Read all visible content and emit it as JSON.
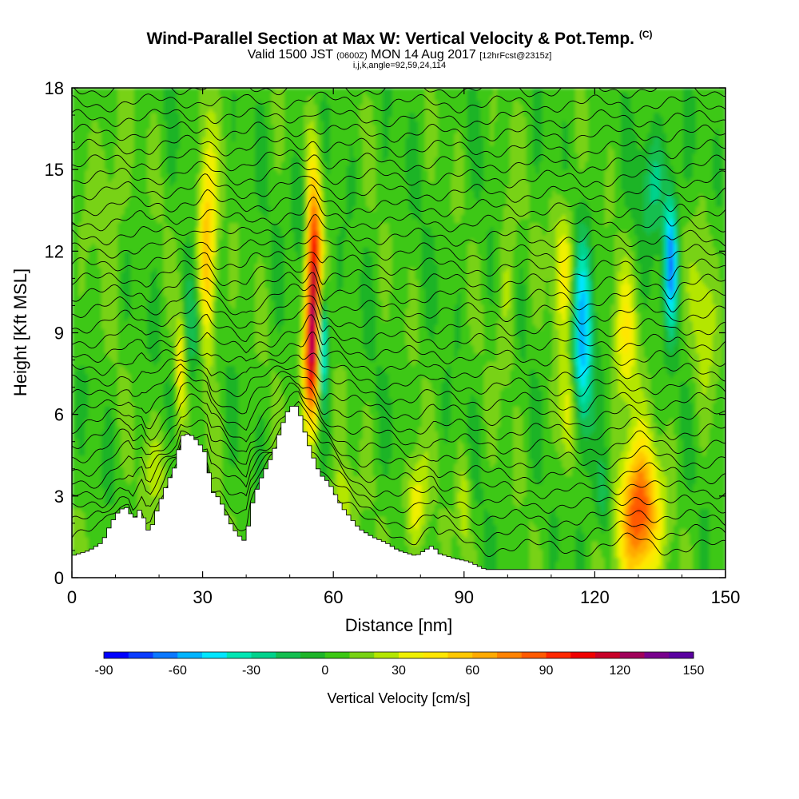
{
  "title": {
    "main": "Wind-Parallel Section at Max W: Vertical Velocity & Pot.Temp.",
    "copyright": "(C)",
    "valid_prefix": "Valid 1500 JST",
    "utc": "(0600Z)",
    "valid_date": "MON 14 Aug 2017",
    "forecast": "[12hrFcst@2315z]",
    "indices": "i,j,k,angle=92,59,24,114"
  },
  "chart_data": {
    "type": "heatmap",
    "xlabel": "Distance [nm]",
    "ylabel": "Height [Kft MSL]",
    "xlim": [
      0,
      150
    ],
    "ylim": [
      0,
      18
    ],
    "xticks": [
      0,
      30,
      60,
      90,
      120,
      150
    ],
    "yticks": [
      0,
      3,
      6,
      9,
      12,
      15,
      18
    ],
    "colorbar": {
      "label": "Vertical Velocity [cm/s]",
      "ticks": [
        -90,
        -60,
        -30,
        0,
        30,
        60,
        90,
        120,
        150
      ],
      "levels": [
        -90,
        -80,
        -70,
        -60,
        -50,
        -40,
        -30,
        -20,
        -10,
        0,
        10,
        20,
        30,
        40,
        50,
        60,
        70,
        80,
        90,
        100,
        110,
        120,
        130,
        140,
        150
      ],
      "colors": [
        "#0000ff",
        "#0a3cff",
        "#0a78ff",
        "#00b4ff",
        "#00e6ff",
        "#00e6b4",
        "#00d28c",
        "#14be50",
        "#1eb428",
        "#3cc814",
        "#78d214",
        "#b4e600",
        "#f0f000",
        "#ffe600",
        "#ffc800",
        "#ffaa00",
        "#ff8200",
        "#ff5a00",
        "#ff2800",
        "#f00000",
        "#c80028",
        "#a0005a",
        "#78008c",
        "#5a00a0"
      ]
    },
    "background_w": 5,
    "features": [
      {
        "x": 31,
        "y": 12.0,
        "sx": 1.5,
        "sy": 2.8,
        "w": 60
      },
      {
        "x": 25,
        "y": 7.8,
        "sx": 0.8,
        "sy": 1.5,
        "w": 40
      },
      {
        "x": 28,
        "y": 9.3,
        "sx": 1.8,
        "sy": 1.5,
        "w": -30
      },
      {
        "x": 55.5,
        "y": 10.8,
        "sx": 1.3,
        "sy": 3.0,
        "w": 110
      },
      {
        "x": 54.5,
        "y": 7.8,
        "sx": 1.2,
        "sy": 1.5,
        "w": 60
      },
      {
        "x": 57.5,
        "y": 8.7,
        "sx": 0.8,
        "sy": 1.5,
        "w": -80
      },
      {
        "x": 53,
        "y": 13.5,
        "sx": 1.5,
        "sy": 1.5,
        "w": -25
      },
      {
        "x": 79,
        "y": 2.8,
        "sx": 1.8,
        "sy": 1.3,
        "w": 35
      },
      {
        "x": 90,
        "y": 2.7,
        "sx": 1.0,
        "sy": 1.2,
        "w": 25
      },
      {
        "x": 113,
        "y": 11.5,
        "sx": 2.0,
        "sy": 1.8,
        "w": 35
      },
      {
        "x": 117,
        "y": 8.6,
        "sx": 1.7,
        "sy": 2.8,
        "w": -60
      },
      {
        "x": 114,
        "y": 6.0,
        "sx": 1.5,
        "sy": 1.5,
        "w": 35
      },
      {
        "x": 130,
        "y": 2.3,
        "sx": 3.2,
        "sy": 1.8,
        "w": 90
      },
      {
        "x": 127,
        "y": 8.7,
        "sx": 2.0,
        "sy": 2.0,
        "w": 30
      },
      {
        "x": 137.5,
        "y": 11.6,
        "sx": 1.0,
        "sy": 1.6,
        "w": -70
      },
      {
        "x": 134,
        "y": 14.5,
        "sx": 3.0,
        "sy": 1.5,
        "w": -25
      },
      {
        "x": 122,
        "y": 3.0,
        "sx": 1.5,
        "sy": 1.2,
        "w": -25
      },
      {
        "x": 62,
        "y": 2.8,
        "sx": 2.0,
        "sy": 1.0,
        "w": 25
      },
      {
        "x": 9,
        "y": 14.5,
        "sx": 3.0,
        "sy": 2.0,
        "w": 15
      },
      {
        "x": 145,
        "y": 10,
        "sx": 2.0,
        "sy": 2.5,
        "w": 20
      },
      {
        "x": 20,
        "y": 4.0,
        "sx": 3.0,
        "sy": 1.2,
        "w": 15
      },
      {
        "x": 100,
        "y": 11,
        "sx": 1.5,
        "sy": 3.0,
        "w": 15
      }
    ],
    "terrain": [
      [
        0,
        0.8
      ],
      [
        4,
        1.0
      ],
      [
        7,
        1.3
      ],
      [
        9,
        2.0
      ],
      [
        11,
        2.5
      ],
      [
        13,
        2.6
      ],
      [
        14,
        2.1
      ],
      [
        16,
        2.6
      ],
      [
        17,
        1.8
      ],
      [
        18,
        1.7
      ],
      [
        20,
        2.7
      ],
      [
        22,
        3.5
      ],
      [
        24,
        4.2
      ],
      [
        25,
        5.2
      ],
      [
        27,
        5.3
      ],
      [
        29,
        5.0
      ],
      [
        31,
        4.5
      ],
      [
        32,
        3.2
      ],
      [
        34,
        2.9
      ],
      [
        36,
        2.1
      ],
      [
        38,
        1.6
      ],
      [
        40,
        1.3
      ],
      [
        41,
        2.5
      ],
      [
        43,
        3.5
      ],
      [
        46,
        4.5
      ],
      [
        48,
        5.5
      ],
      [
        50,
        6.3
      ],
      [
        52,
        6.3
      ],
      [
        53,
        5.6
      ],
      [
        55,
        4.6
      ],
      [
        57,
        3.8
      ],
      [
        59,
        3.5
      ],
      [
        62,
        2.6
      ],
      [
        64,
        2.2
      ],
      [
        66,
        1.8
      ],
      [
        69,
        1.5
      ],
      [
        72,
        1.3
      ],
      [
        75,
        1.0
      ],
      [
        77,
        0.9
      ],
      [
        79,
        0.8
      ],
      [
        83,
        1.2
      ],
      [
        84,
        0.9
      ],
      [
        88,
        0.7
      ],
      [
        91,
        0.6
      ],
      [
        95,
        0.3
      ],
      [
        150,
        0.3
      ]
    ],
    "isentropes": {
      "count": 32,
      "base": 0.9,
      "spacing": 0.55
    }
  }
}
